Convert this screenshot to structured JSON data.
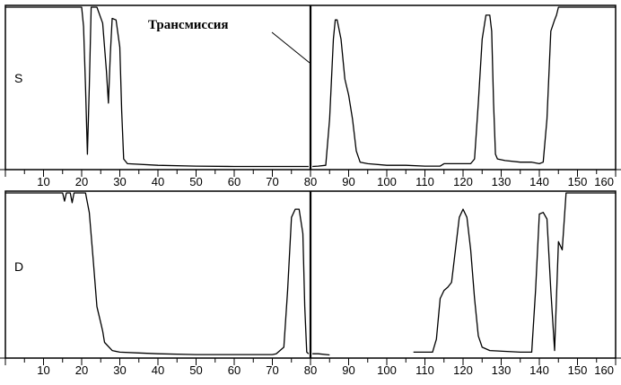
{
  "chart_data": [
    {
      "type": "line",
      "panel_label": "S",
      "xlim": [
        0,
        160
      ],
      "ylim": [
        0,
        100
      ],
      "tick_labels": [
        "10",
        "20",
        "30",
        "40",
        "50",
        "60",
        "70",
        "80",
        "90",
        "100",
        "110",
        "120",
        "130",
        "140",
        "150",
        "160"
      ],
      "divider_x": 80,
      "annotation": {
        "text": "Трансмиссия",
        "target_x": 80
      },
      "series": [
        {
          "segments": [
            [
              [
                0,
                100
              ],
              [
                20,
                100
              ],
              [
                20.5,
                88
              ],
              [
                21,
                50
              ],
              [
                21.5,
                8
              ],
              [
                22,
                50
              ],
              [
                22.5,
                100
              ],
              [
                24,
                100
              ],
              [
                25.5,
                90
              ],
              [
                26.5,
                60
              ],
              [
                27,
                40
              ],
              [
                27.5,
                70
              ],
              [
                28,
                93
              ],
              [
                29,
                92
              ],
              [
                30,
                75
              ],
              [
                30.5,
                35
              ],
              [
                31,
                5
              ],
              [
                32,
                2
              ],
              [
                40,
                1
              ],
              [
                50,
                0.5
              ],
              [
                60,
                0.3
              ],
              [
                70,
                0.3
              ],
              [
                79.5,
                0.3
              ]
            ],
            [
              [
                80.5,
                0.3
              ],
              [
                82,
                0.5
              ],
              [
                84,
                1
              ],
              [
                85,
                30
              ],
              [
                86,
                80
              ],
              [
                86.5,
                92
              ],
              [
                87,
                92
              ],
              [
                88,
                80
              ],
              [
                89,
                55
              ],
              [
                89.5,
                50
              ],
              [
                90,
                45
              ],
              [
                91,
                30
              ],
              [
                92,
                10
              ],
              [
                93,
                3
              ],
              [
                95,
                2
              ],
              [
                100,
                1
              ],
              [
                105,
                1
              ],
              [
                110,
                0.5
              ],
              [
                114,
                0.5
              ],
              [
                115,
                2
              ],
              [
                120,
                2
              ],
              [
                122,
                2
              ],
              [
                123,
                5
              ],
              [
                124,
                40
              ],
              [
                125,
                80
              ],
              [
                126,
                95
              ],
              [
                127,
                95
              ],
              [
                127.5,
                85
              ],
              [
                128,
                40
              ],
              [
                128.5,
                8
              ],
              [
                129,
                5
              ],
              [
                131,
                4
              ],
              [
                135,
                3
              ],
              [
                138,
                3
              ],
              [
                140,
                2
              ],
              [
                141,
                3
              ],
              [
                142,
                30
              ],
              [
                143,
                85
              ],
              [
                144,
                92
              ],
              [
                144.5,
                95
              ],
              [
                145,
                100
              ],
              [
                160,
                100
              ]
            ]
          ]
        }
      ]
    },
    {
      "type": "line",
      "panel_label": "D",
      "xlim": [
        0,
        160
      ],
      "ylim": [
        0,
        100
      ],
      "tick_labels": [
        "10",
        "20",
        "30",
        "40",
        "50",
        "60",
        "70",
        "80",
        "90",
        "100",
        "110",
        "120",
        "130",
        "140",
        "150",
        "160"
      ],
      "divider_x": 80,
      "series": [
        {
          "segments": [
            [
              [
                0,
                100
              ],
              [
                15,
                100
              ],
              [
                15.5,
                95
              ],
              [
                16,
                100
              ],
              [
                17,
                100
              ],
              [
                17.5,
                94
              ],
              [
                18,
                100
              ],
              [
                19,
                100
              ],
              [
                21,
                100
              ],
              [
                22,
                88
              ],
              [
                23,
                60
              ],
              [
                24,
                30
              ],
              [
                25,
                20
              ],
              [
                25.5,
                15
              ],
              [
                26,
                8
              ],
              [
                28,
                3
              ],
              [
                30,
                2
              ],
              [
                35,
                1.5
              ],
              [
                40,
                1
              ],
              [
                50,
                0.5
              ],
              [
                60,
                0.5
              ],
              [
                70,
                0.5
              ],
              [
                71,
                1
              ],
              [
                72,
                3
              ],
              [
                73,
                5
              ],
              [
                74,
                40
              ],
              [
                75,
                85
              ],
              [
                76,
                90
              ],
              [
                77,
                90
              ],
              [
                78,
                75
              ],
              [
                78.5,
                30
              ],
              [
                79,
                2
              ],
              [
                79.5,
                1
              ]
            ],
            [
              [
                80.5,
                1
              ],
              [
                82,
                1
              ],
              [
                85,
                0.3
              ]
            ],
            [
              [
                107,
                2
              ],
              [
                112,
                2
              ],
              [
                113,
                10
              ],
              [
                114,
                35
              ],
              [
                115,
                40
              ],
              [
                116,
                42
              ],
              [
                117,
                45
              ],
              [
                118,
                65
              ],
              [
                119,
                85
              ],
              [
                120,
                90
              ],
              [
                121,
                85
              ],
              [
                122,
                65
              ],
              [
                123,
                35
              ],
              [
                124,
                12
              ],
              [
                125,
                5
              ],
              [
                127,
                3
              ],
              [
                135,
                2
              ],
              [
                138,
                2
              ],
              [
                139,
                40
              ],
              [
                140,
                87
              ],
              [
                141,
                88
              ],
              [
                142,
                84
              ],
              [
                143,
                40
              ],
              [
                144,
                3
              ],
              [
                145,
                70
              ],
              [
                146,
                65
              ],
              [
                147,
                100
              ],
              [
                160,
                100
              ]
            ]
          ]
        }
      ]
    }
  ]
}
